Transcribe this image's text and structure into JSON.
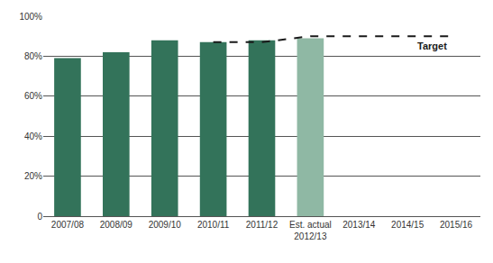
{
  "chart_data": {
    "type": "bar",
    "categories": [
      "2007/08",
      "2008/09",
      "2009/10",
      "2010/11",
      "2011/12",
      "Est. actual 2012/13",
      "2013/14",
      "2014/15",
      "2015/16"
    ],
    "series": [
      {
        "type": "bar",
        "values": [
          79,
          82,
          88,
          87,
          88,
          89,
          null,
          null,
          null
        ],
        "colors": [
          "#33735a",
          "#33735a",
          "#33735a",
          "#33735a",
          "#33735a",
          "#8fb8a4",
          "#33735a",
          "#33735a",
          "#33735a"
        ]
      },
      {
        "name": "Target",
        "type": "line",
        "line_style": "dashed",
        "color": "#1a1a1a",
        "values": [
          null,
          null,
          null,
          87,
          87,
          90,
          90,
          90,
          90
        ]
      }
    ],
    "ylim": [
      0,
      100
    ],
    "yticks": [
      0,
      {
        "value": 20,
        "label": "20%"
      },
      {
        "value": 40,
        "label": "40%"
      },
      {
        "value": 60,
        "label": "60%"
      },
      {
        "value": 80,
        "label": "80%"
      },
      {
        "value": 100,
        "label": "100%"
      }
    ],
    "grid": true
  }
}
